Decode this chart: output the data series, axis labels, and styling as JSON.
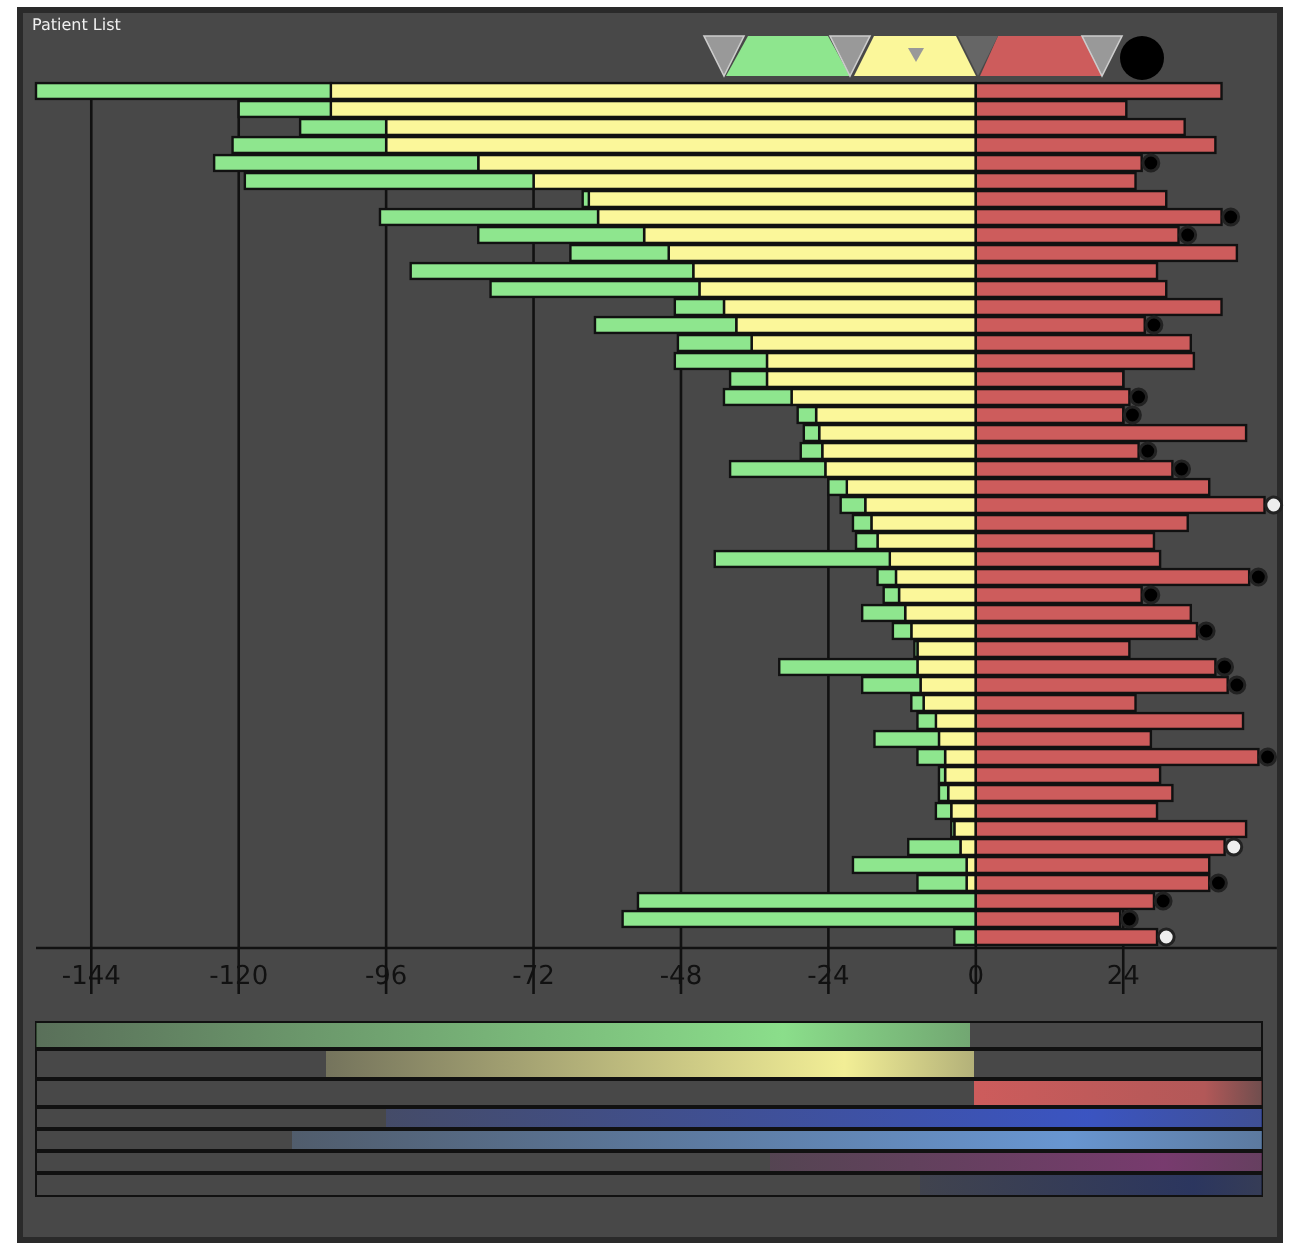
{
  "chart_data": {
    "type": "bar",
    "title": "Patient List",
    "orientation": "horizontal",
    "stacked": true,
    "grid": "x",
    "tick_labels": "x",
    "categories": [
      null,
      null,
      null,
      null,
      null,
      null,
      null,
      null,
      null,
      null,
      null,
      null,
      null,
      null,
      null,
      null,
      null,
      null,
      null,
      null,
      null,
      null,
      null,
      null,
      null,
      null,
      null,
      null,
      null,
      null,
      null,
      null,
      null,
      null,
      null,
      null,
      null,
      null,
      null,
      null,
      null,
      null,
      null,
      null,
      null,
      null,
      null,
      null
    ],
    "xlim": [
      -153,
      49
    ],
    "xticks": [
      -144,
      -120,
      -96,
      -72,
      -48,
      -24,
      0,
      24
    ],
    "series": [
      {
        "color": "#fbf79a",
        "values": [
          -105,
          -105,
          -96,
          -96,
          -81,
          -72,
          -63,
          -61.5,
          -54,
          -50,
          -46,
          -45,
          -41,
          -39,
          -36.5,
          -34,
          -34,
          -30,
          -26,
          -25.5,
          -25,
          -24.5,
          -21,
          -18,
          -17,
          -16,
          -14,
          -13,
          -12.5,
          -11.5,
          -10.5,
          -9.5,
          -9.5,
          -9,
          -8.5,
          -6.5,
          -6,
          -5,
          -5,
          -4.5,
          -4,
          -3.5,
          -2.5,
          -1.5,
          -1.5,
          null,
          null,
          0
        ]
      },
      {
        "color": "#8ee68e",
        "values": [
          -48,
          -15,
          -14,
          -25,
          -43,
          -47,
          -1,
          -35.5,
          -27,
          -16,
          -46,
          -34,
          -8,
          -23,
          -12,
          -15,
          -6,
          -11,
          -3,
          -2.5,
          -3.5,
          -15.5,
          -3,
          -4,
          -3,
          -3.5,
          -28.5,
          -3,
          -2.5,
          -7,
          -3,
          -0.5,
          -22.5,
          -9.5,
          -2,
          -3,
          -10.5,
          -4.5,
          -1,
          -1.5,
          -2.5,
          -0.5,
          -8.5,
          -18.5,
          -8,
          -55,
          -57.5,
          -3.5
        ]
      },
      {
        "color": "#cd5c5c",
        "values": [
          40,
          24.5,
          34,
          39,
          27,
          26,
          31,
          40,
          33,
          42.5,
          29.5,
          31,
          40,
          27.5,
          35,
          35.5,
          24,
          25,
          24,
          44,
          26.5,
          32,
          38,
          47,
          34.5,
          29,
          30,
          44.5,
          27,
          35,
          36,
          25,
          39,
          41,
          26,
          43.5,
          28.5,
          46,
          30,
          32,
          29.5,
          44,
          40.5,
          38,
          38,
          29,
          23.5,
          29.5
        ]
      },
      {
        "type": "scatter",
        "marker": "circle",
        "values": [
          null,
          null,
          null,
          null,
          28.5,
          null,
          null,
          41.5,
          34.5,
          null,
          null,
          null,
          null,
          29,
          null,
          null,
          null,
          26.5,
          25.5,
          null,
          28,
          33.5,
          null,
          48.5,
          null,
          null,
          null,
          46,
          28.5,
          null,
          37.5,
          null,
          40.5,
          42.5,
          null,
          null,
          null,
          47.5,
          null,
          null,
          null,
          null,
          42,
          null,
          39.5,
          30.5,
          25,
          31
        ],
        "colors": [
          null,
          null,
          null,
          null,
          "#000000",
          null,
          null,
          "#000000",
          "#000000",
          null,
          null,
          null,
          null,
          "#000000",
          null,
          null,
          null,
          "#000000",
          "#000000",
          null,
          "#000000",
          "#000000",
          null,
          "#eeeeee",
          null,
          null,
          null,
          "#000000",
          "#000000",
          null,
          "#000000",
          null,
          "#000000",
          "#000000",
          null,
          null,
          null,
          "#000000",
          null,
          null,
          null,
          null,
          "#eeeeee",
          null,
          "#000000",
          "#000000",
          "#000000",
          "#eeeeee"
        ]
      }
    ]
  }
}
